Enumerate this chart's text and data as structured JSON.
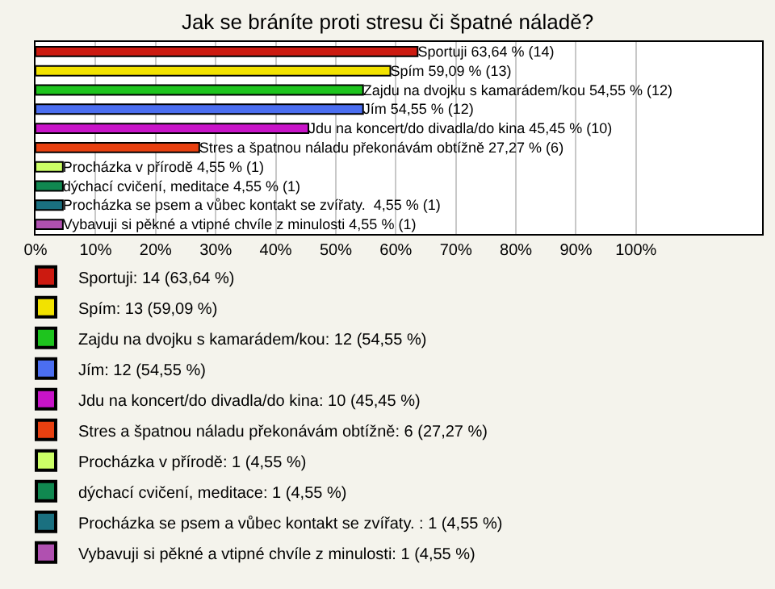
{
  "chart_data": {
    "type": "bar",
    "orientation": "horizontal",
    "title": "Jak se bráníte proti stresu či špatné náladě?",
    "categories": [
      null,
      null,
      null,
      null,
      null,
      null,
      null,
      null,
      null,
      null
    ],
    "series": [
      {
        "name": "Sportuji: 14 (63,64 %)",
        "color": "#cc1a10",
        "values": [
          63.64,
          null,
          null,
          null,
          null,
          null,
          null,
          null,
          null,
          null
        ],
        "value_labels": [
          "Sportuji 63,64 % (14)",
          null,
          null,
          null,
          null,
          null,
          null,
          null,
          null,
          null
        ]
      },
      {
        "name": "Spím: 13 (59,09 %)",
        "color": "#f2e200",
        "values": [
          null,
          59.09,
          null,
          null,
          null,
          null,
          null,
          null,
          null,
          null
        ],
        "value_labels": [
          null,
          "Spím 59,09 % (13)",
          null,
          null,
          null,
          null,
          null,
          null,
          null,
          null
        ]
      },
      {
        "name": "Zajdu na dvojku s kamarádem/kou: 12 (54,55 %)",
        "color": "#1ec41e",
        "values": [
          null,
          null,
          54.55,
          null,
          null,
          null,
          null,
          null,
          null,
          null
        ],
        "value_labels": [
          null,
          null,
          "Zajdu na dvojku s kamarádem/kou 54,55 % (12)",
          null,
          null,
          null,
          null,
          null,
          null,
          null
        ]
      },
      {
        "name": "Jím: 12 (54,55 %)",
        "color": "#4b6ef0",
        "values": [
          null,
          null,
          null,
          54.55,
          null,
          null,
          null,
          null,
          null,
          null
        ],
        "value_labels": [
          null,
          null,
          null,
          "Jím 54,55 % (12)",
          null,
          null,
          null,
          null,
          null,
          null
        ]
      },
      {
        "name": "Jdu na koncert/do divadla/do kina: 10 (45,45 %)",
        "color": "#c814c8",
        "values": [
          null,
          null,
          null,
          null,
          45.45,
          null,
          null,
          null,
          null,
          null
        ],
        "value_labels": [
          null,
          null,
          null,
          null,
          "Jdu na koncert/do divadla/do kina 45,45 % (10)",
          null,
          null,
          null,
          null,
          null
        ]
      },
      {
        "name": "Stres a špatnou náladu překonávám obtížně: 6 (27,27 %)",
        "color": "#e84010",
        "values": [
          null,
          null,
          null,
          null,
          null,
          27.27,
          null,
          null,
          null,
          null
        ],
        "value_labels": [
          null,
          null,
          null,
          null,
          null,
          "Stres a špatnou náladu překonávám obtížně 27,27 % (6)",
          null,
          null,
          null,
          null
        ]
      },
      {
        "name": "Procházka v přírodě: 1 (4,55 %)",
        "color": "#ccff66",
        "values": [
          null,
          null,
          null,
          null,
          null,
          null,
          4.55,
          null,
          null,
          null
        ],
        "value_labels": [
          null,
          null,
          null,
          null,
          null,
          null,
          "Procházka v přírodě 4,55 % (1)",
          null,
          null,
          null
        ]
      },
      {
        "name": "dýchací cvičení, meditace: 1 (4,55 %)",
        "color": "#108850",
        "values": [
          null,
          null,
          null,
          null,
          null,
          null,
          null,
          4.55,
          null,
          null
        ],
        "value_labels": [
          null,
          null,
          null,
          null,
          null,
          null,
          null,
          "dýchací cvičení, meditace 4,55 % (1)",
          null,
          null
        ]
      },
      {
        "name": "Procházka se psem a vůbec kontakt se zvířaty. : 1 (4,55 %)",
        "color": "#1a7080",
        "values": [
          null,
          null,
          null,
          null,
          null,
          null,
          null,
          null,
          4.55,
          null
        ],
        "value_labels": [
          null,
          null,
          null,
          null,
          null,
          null,
          null,
          null,
          "Procházka se psem a vůbec kontakt se zvířaty.  4,55 % (1)",
          null
        ]
      },
      {
        "name": "Vybavuji si pěkné a vtipné chvíle z minulosti: 1 (4,55 %)",
        "color": "#b050b0",
        "values": [
          null,
          null,
          null,
          null,
          null,
          null,
          null,
          null,
          null,
          4.55
        ],
        "value_labels": [
          null,
          null,
          null,
          null,
          null,
          null,
          null,
          null,
          null,
          "Vybavuji si pěkné a vtipné chvíle z minulosti 4,55 % (1)"
        ]
      }
    ],
    "xlim": [
      0,
      121
    ],
    "xticks": [
      {
        "value": 0,
        "label": "0%"
      },
      {
        "value": 10,
        "label": "10%"
      },
      {
        "value": 20,
        "label": "20%"
      },
      {
        "value": 30,
        "label": "30%"
      },
      {
        "value": 40,
        "label": "40%"
      },
      {
        "value": 50,
        "label": "50%"
      },
      {
        "value": 60,
        "label": "60%"
      },
      {
        "value": 70,
        "label": "70%"
      },
      {
        "value": 80,
        "label": "80%"
      },
      {
        "value": 90,
        "label": "90%"
      },
      {
        "value": 100,
        "label": "100%"
      }
    ],
    "grid": "x",
    "legend": "bottom",
    "tick_labels": "x"
  }
}
